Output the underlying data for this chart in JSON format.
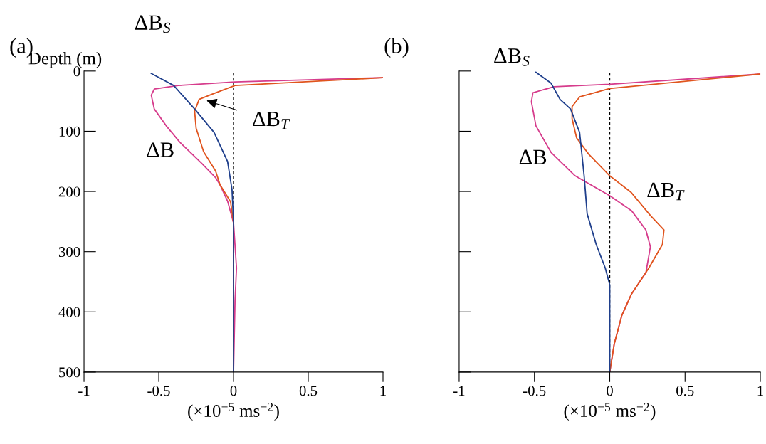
{
  "chart_data": [
    {
      "type": "line",
      "title": "(a)",
      "ylabel": "Depth (m)",
      "xlabel": "(×10$^{−5}$ ms$^{−2}$)",
      "xlim": [
        -1,
        1
      ],
      "ylim": [
        500,
        0
      ],
      "xticks": [
        -1,
        -0.5,
        0,
        0.5,
        1
      ],
      "yticks": [
        0,
        100,
        200,
        300,
        400,
        500
      ],
      "grid": false,
      "ref_lines": [
        {
          "axis": "x",
          "value": 0,
          "color": "#000000",
          "line_style": "dashed"
        }
      ],
      "series": [
        {
          "name": "ΔB",
          "color": "#d63c8c",
          "x": [
            1.0,
            0.01,
            -0.37,
            -0.53,
            -0.55,
            -0.53,
            -0.45,
            -0.36,
            -0.21,
            -0.12,
            -0.09,
            -0.04,
            0.0,
            0.02,
            0.01,
            0.0
          ],
          "values": [
            11,
            18,
            24,
            30,
            40,
            63,
            91,
            118,
            154,
            177,
            189,
            216,
            252,
            327,
            382,
            500
          ]
        },
        {
          "name": "ΔB$_{T}$",
          "color": "#e0541e",
          "x": [
            1.0,
            0.01,
            -0.15,
            -0.23,
            -0.26,
            -0.25,
            -0.2,
            -0.12,
            -0.09,
            -0.02,
            0.0,
            0.0
          ],
          "values": [
            11,
            24,
            39,
            47,
            67,
            95,
            134,
            166,
            189,
            217,
            252,
            500
          ]
        },
        {
          "name": "ΔB$_{S}$",
          "color": "#1f3f8c",
          "x": [
            -0.55,
            -0.4,
            -0.26,
            -0.13,
            -0.04,
            -0.01,
            0.0,
            0.0
          ],
          "values": [
            4,
            24,
            63,
            102,
            150,
            197,
            250,
            500
          ]
        }
      ]
    },
    {
      "type": "line",
      "title": "(b)",
      "xlabel": "(×10$^{−5}$ ms$^{−2}$)",
      "tick_labels": "x",
      "xlim": [
        -1,
        1
      ],
      "ylim": [
        500,
        0
      ],
      "xticks": [
        -1,
        -0.5,
        0,
        0.5,
        1
      ],
      "yticks": [
        0,
        100,
        200,
        300,
        400,
        500
      ],
      "grid": false,
      "ref_lines": [
        {
          "axis": "x",
          "value": 0,
          "color": "#000000",
          "line_style": "dashed"
        }
      ],
      "series": [
        {
          "name": "ΔB",
          "color": "#d63c8c",
          "x": [
            1.0,
            0.0,
            -0.37,
            -0.51,
            -0.52,
            -0.49,
            -0.39,
            -0.23,
            0.0,
            0.145,
            0.24,
            0.27,
            0.24,
            0.145,
            0.08,
            0.03,
            0.0
          ],
          "values": [
            5,
            22,
            26,
            36,
            51,
            91,
            135,
            174,
            207,
            232,
            264,
            292,
            335,
            370,
            406,
            453,
            500
          ]
        },
        {
          "name": "ΔB$_{T}$",
          "color": "#e0541e",
          "x": [
            1.0,
            0.0,
            -0.2,
            -0.25,
            -0.25,
            -0.22,
            -0.14,
            0.0,
            0.14,
            0.27,
            0.36,
            0.35,
            0.26,
            0.145,
            0.08,
            0.03,
            0.0
          ],
          "values": [
            5,
            29,
            43,
            59,
            79,
            111,
            138,
            174,
            201,
            240,
            264,
            288,
            327,
            370,
            406,
            453,
            500
          ]
        },
        {
          "name": "ΔB$_{S}$",
          "color": "#1f3f8c",
          "x": [
            -0.49,
            -0.39,
            -0.33,
            -0.26,
            -0.2,
            -0.17,
            -0.15,
            -0.09,
            -0.03,
            0.0,
            0.0
          ],
          "values": [
            2,
            20,
            47,
            63,
            102,
            174,
            237,
            288,
            327,
            355,
            500
          ]
        }
      ]
    }
  ]
}
